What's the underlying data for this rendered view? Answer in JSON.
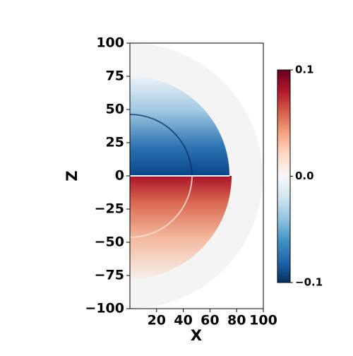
{
  "chart_data": {
    "type": "field",
    "x_label": "X",
    "y_label": "Z",
    "xlim": [
      0,
      100
    ],
    "ylim": [
      -100,
      100
    ],
    "xticks": [
      20,
      40,
      60,
      80,
      100
    ],
    "yticks": [
      {
        "value": -100,
        "label": "−100"
      },
      {
        "value": -75,
        "label": "−75"
      },
      {
        "value": -50,
        "label": "−50"
      },
      {
        "value": -25,
        "label": "−25"
      },
      0,
      25,
      50,
      75,
      100
    ],
    "colorbar": {
      "clim": [
        -0.1,
        0.1
      ],
      "ticks": [
        {
          "value": -0.1,
          "label": "−0.1"
        },
        {
          "value": 0,
          "label": "0.0"
        },
        0.1
      ],
      "colormap": "RdBu_r"
    }
  }
}
